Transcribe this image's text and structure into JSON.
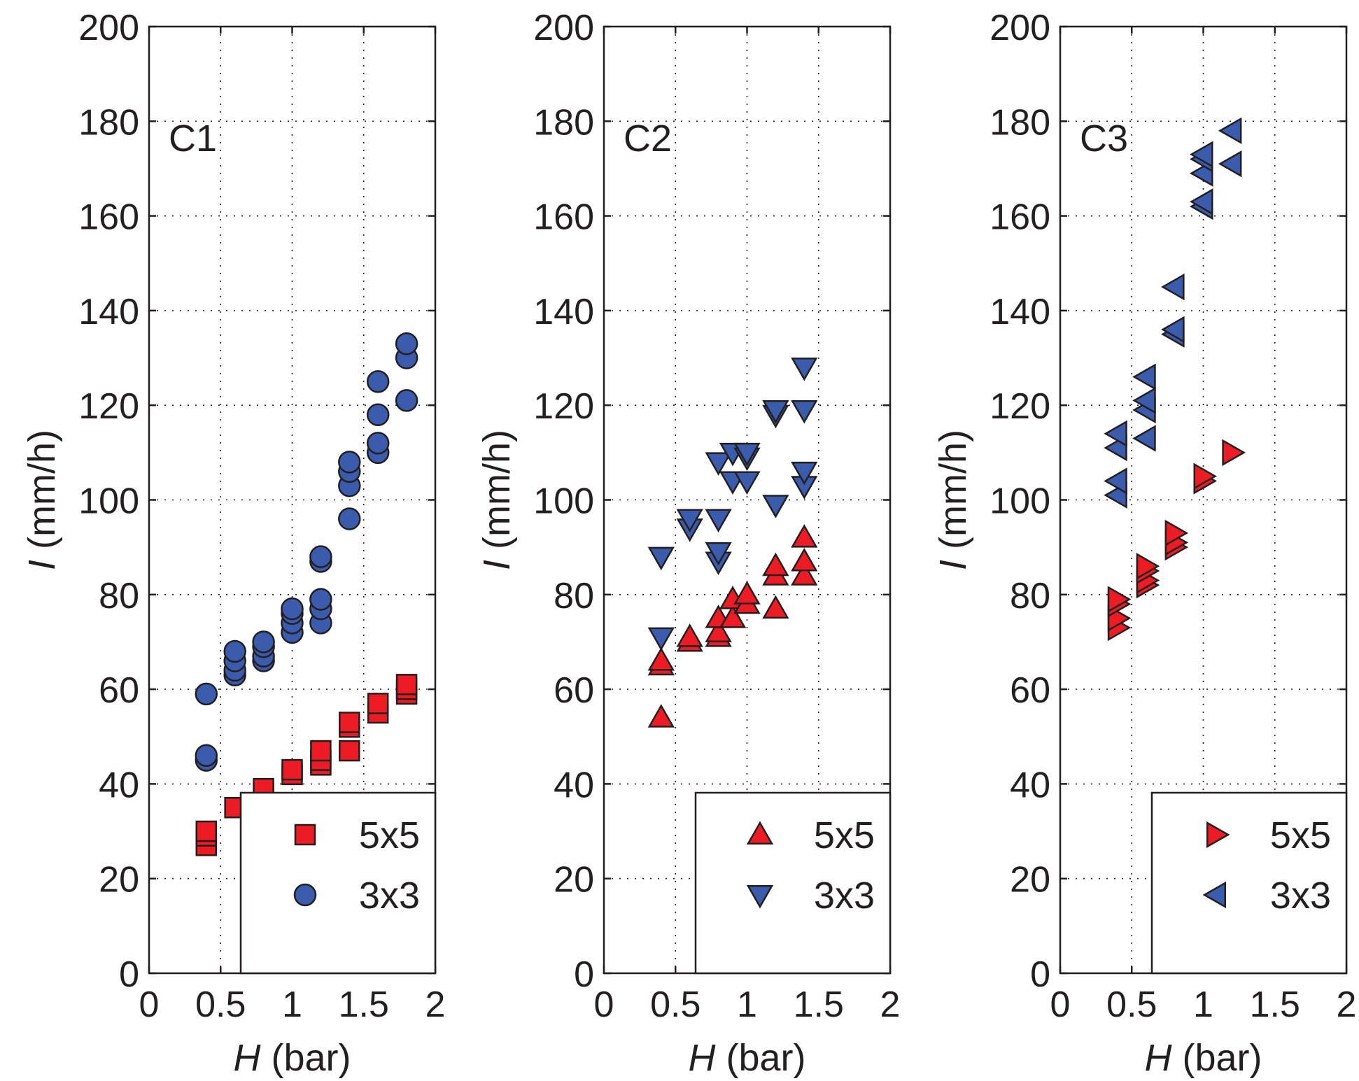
{
  "chart_data": [
    {
      "type": "scatter",
      "panel_label": "C1",
      "xlabel": {
        "symbol": "H",
        "unit": " (bar)"
      },
      "ylabel": {
        "symbol": "I",
        "unit": " (mm/h)"
      },
      "xlim": [
        0,
        2
      ],
      "ylim": [
        0,
        200
      ],
      "xticks": [
        "0",
        "0.5",
        "1",
        "1.5",
        "2"
      ],
      "yticks": [
        "0",
        "20",
        "40",
        "60",
        "80",
        "100",
        "120",
        "140",
        "160",
        "180",
        "200"
      ],
      "grid": true,
      "legend_position": "bottom-right",
      "series": [
        {
          "name": "5x5",
          "marker": "square",
          "color": "#ed1c24",
          "points": [
            [
              0.4,
              27
            ],
            [
              0.4,
              29
            ],
            [
              0.4,
              30
            ],
            [
              0.6,
              35
            ],
            [
              0.6,
              35
            ],
            [
              0.8,
              38
            ],
            [
              0.8,
              39
            ],
            [
              1.0,
              42
            ],
            [
              1.0,
              43
            ],
            [
              1.2,
              44
            ],
            [
              1.2,
              45
            ],
            [
              1.2,
              47
            ],
            [
              1.4,
              47
            ],
            [
              1.4,
              52
            ],
            [
              1.4,
              53
            ],
            [
              1.6,
              55
            ],
            [
              1.6,
              57
            ],
            [
              1.8,
              59
            ],
            [
              1.8,
              60
            ],
            [
              1.8,
              61
            ]
          ]
        },
        {
          "name": "3x3",
          "marker": "circle",
          "color": "#3b5cad",
          "points": [
            [
              0.4,
              45
            ],
            [
              0.4,
              46
            ],
            [
              0.4,
              59
            ],
            [
              0.6,
              63
            ],
            [
              0.6,
              64
            ],
            [
              0.6,
              66
            ],
            [
              0.6,
              68
            ],
            [
              0.8,
              66
            ],
            [
              0.8,
              67
            ],
            [
              0.8,
              69
            ],
            [
              0.8,
              70
            ],
            [
              1.0,
              72
            ],
            [
              1.0,
              74
            ],
            [
              1.0,
              76
            ],
            [
              1.0,
              77
            ],
            [
              1.2,
              74
            ],
            [
              1.2,
              77
            ],
            [
              1.2,
              79
            ],
            [
              1.2,
              87
            ],
            [
              1.2,
              88
            ],
            [
              1.4,
              96
            ],
            [
              1.4,
              103
            ],
            [
              1.4,
              106
            ],
            [
              1.4,
              108
            ],
            [
              1.6,
              110
            ],
            [
              1.6,
              112
            ],
            [
              1.6,
              118
            ],
            [
              1.6,
              125
            ],
            [
              1.8,
              121
            ],
            [
              1.8,
              130
            ],
            [
              1.8,
              133
            ]
          ]
        }
      ]
    },
    {
      "type": "scatter",
      "panel_label": "C2",
      "xlabel": {
        "symbol": "H",
        "unit": " (bar)"
      },
      "ylabel": {
        "symbol": "I",
        "unit": " (mm/h)"
      },
      "xlim": [
        0,
        2
      ],
      "ylim": [
        0,
        200
      ],
      "xticks": [
        "0",
        "0.5",
        "1",
        "1.5",
        "2"
      ],
      "yticks": [
        "0",
        "20",
        "40",
        "60",
        "80",
        "100",
        "120",
        "140",
        "160",
        "180",
        "200"
      ],
      "grid": true,
      "legend_position": "bottom-right",
      "series": [
        {
          "name": "5x5",
          "marker": "triangle-up",
          "color": "#ed1c24",
          "points": [
            [
              0.4,
              54
            ],
            [
              0.4,
              65
            ],
            [
              0.4,
              66
            ],
            [
              0.6,
              70
            ],
            [
              0.6,
              71
            ],
            [
              0.8,
              71
            ],
            [
              0.8,
              72
            ],
            [
              0.8,
              75
            ],
            [
              0.9,
              75
            ],
            [
              0.9,
              79
            ],
            [
              1.0,
              78
            ],
            [
              1.0,
              80
            ],
            [
              1.2,
              77
            ],
            [
              1.2,
              84
            ],
            [
              1.2,
              86
            ],
            [
              1.4,
              84
            ],
            [
              1.4,
              87
            ],
            [
              1.4,
              92
            ]
          ]
        },
        {
          "name": "3x3",
          "marker": "triangle-down",
          "color": "#3b5cad",
          "points": [
            [
              0.4,
              71
            ],
            [
              0.4,
              88
            ],
            [
              0.6,
              94
            ],
            [
              0.6,
              96
            ],
            [
              0.8,
              87
            ],
            [
              0.8,
              89
            ],
            [
              0.8,
              96
            ],
            [
              0.8,
              108
            ],
            [
              0.9,
              104
            ],
            [
              0.9,
              110
            ],
            [
              1.0,
              104
            ],
            [
              1.0,
              109
            ],
            [
              1.0,
              110
            ],
            [
              1.2,
              99
            ],
            [
              1.2,
              118
            ],
            [
              1.2,
              119
            ],
            [
              1.4,
              103
            ],
            [
              1.4,
              106
            ],
            [
              1.4,
              119
            ],
            [
              1.4,
              128
            ]
          ]
        }
      ]
    },
    {
      "type": "scatter",
      "panel_label": "C3",
      "xlabel": {
        "symbol": "H",
        "unit": " (bar)"
      },
      "ylabel": {
        "symbol": "I",
        "unit": " (mm/h)"
      },
      "xlim": [
        0,
        2
      ],
      "ylim": [
        0,
        200
      ],
      "xticks": [
        "0",
        "0.5",
        "1",
        "1.5",
        "2"
      ],
      "yticks": [
        "0",
        "20",
        "40",
        "60",
        "80",
        "100",
        "120",
        "140",
        "160",
        "180",
        "200"
      ],
      "grid": true,
      "legend_position": "bottom-right",
      "series": [
        {
          "name": "5x5",
          "marker": "triangle-right",
          "color": "#ed1c24",
          "points": [
            [
              0.4,
              73
            ],
            [
              0.4,
              75
            ],
            [
              0.4,
              78
            ],
            [
              0.4,
              79
            ],
            [
              0.6,
              82
            ],
            [
              0.6,
              83
            ],
            [
              0.6,
              85
            ],
            [
              0.6,
              86
            ],
            [
              0.8,
              90
            ],
            [
              0.8,
              91
            ],
            [
              0.8,
              93
            ],
            [
              1.0,
              104
            ],
            [
              1.0,
              105
            ],
            [
              1.2,
              110
            ],
            [
              1.2,
              110
            ]
          ]
        },
        {
          "name": "3x3",
          "marker": "triangle-left",
          "color": "#3b5cad",
          "points": [
            [
              0.4,
              101
            ],
            [
              0.4,
              104
            ],
            [
              0.4,
              111
            ],
            [
              0.4,
              114
            ],
            [
              0.6,
              113
            ],
            [
              0.6,
              119
            ],
            [
              0.6,
              121
            ],
            [
              0.6,
              126
            ],
            [
              0.8,
              135
            ],
            [
              0.8,
              136
            ],
            [
              0.8,
              145
            ],
            [
              1.0,
              162
            ],
            [
              1.0,
              163
            ],
            [
              1.0,
              169
            ],
            [
              1.0,
              172
            ],
            [
              1.0,
              173
            ],
            [
              1.2,
              171
            ],
            [
              1.2,
              178
            ]
          ]
        }
      ]
    }
  ]
}
